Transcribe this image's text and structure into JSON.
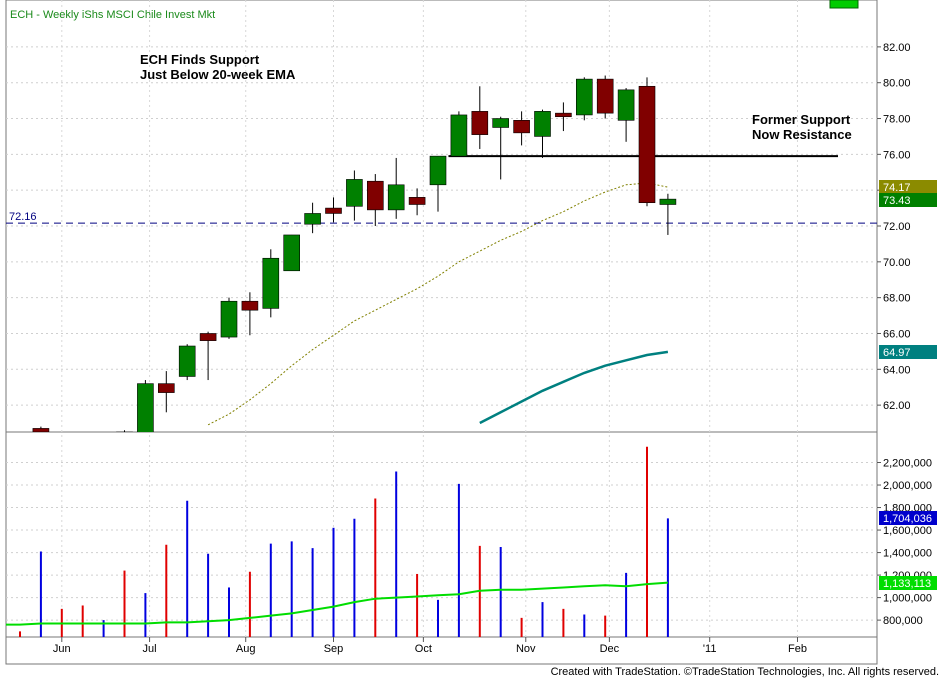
{
  "title": "ECH - Weekly  iShs MSCI Chile Invest Mkt",
  "credit": "Created with TradeStation. ©TradeStation Technologies, Inc. All rights reserved.",
  "chart_data": [
    {
      "type": "candlestick",
      "panel": "price",
      "ylim": [
        60.5,
        83.5
      ],
      "y_ticks": [
        "82.00",
        "80.00",
        "78.00",
        "76.00",
        "74.00",
        "72.00",
        "70.00",
        "68.00",
        "66.00",
        "64.00",
        "62.00"
      ],
      "x_ticks": [
        "Jun",
        "Jul",
        "Aug",
        "Sep",
        "Oct",
        "Nov",
        "Dec",
        "'11",
        "Feb"
      ],
      "candles": [
        {
          "open": 60.4,
          "close": 60.4,
          "high": 60.5,
          "low": 60.3
        },
        {
          "open": 60.7,
          "close": 60.5,
          "high": 60.8,
          "low": 60.3
        },
        {
          "open": 60.4,
          "close": 60.4,
          "high": 60.4,
          "low": 60.3
        },
        {
          "open": 60.4,
          "close": 60.4,
          "high": 60.4,
          "low": 60.3
        },
        {
          "open": 60.4,
          "close": 60.4,
          "high": 60.4,
          "low": 60.3
        },
        {
          "open": 60.5,
          "close": 60.5,
          "high": 60.6,
          "low": 60.3
        },
        {
          "open": 60.4,
          "close": 63.2,
          "high": 63.4,
          "low": 60.3
        },
        {
          "open": 63.2,
          "close": 62.7,
          "high": 63.9,
          "low": 61.6
        },
        {
          "open": 63.6,
          "close": 65.3,
          "high": 65.4,
          "low": 63.4
        },
        {
          "open": 66.0,
          "close": 65.6,
          "high": 66.1,
          "low": 63.4
        },
        {
          "open": 65.8,
          "close": 67.8,
          "high": 68.0,
          "low": 65.7
        },
        {
          "open": 67.8,
          "close": 67.3,
          "high": 68.3,
          "low": 65.9
        },
        {
          "open": 67.4,
          "close": 70.2,
          "high": 70.7,
          "low": 66.9
        },
        {
          "open": 69.5,
          "close": 71.5,
          "high": 71.5,
          "low": 69.5
        },
        {
          "open": 72.1,
          "close": 72.7,
          "high": 73.3,
          "low": 71.6
        },
        {
          "open": 73.0,
          "close": 72.7,
          "high": 73.6,
          "low": 72.2
        },
        {
          "open": 73.1,
          "close": 74.6,
          "high": 75.1,
          "low": 72.3
        },
        {
          "open": 74.5,
          "close": 72.9,
          "high": 74.9,
          "low": 72.0
        },
        {
          "open": 72.9,
          "close": 74.3,
          "high": 75.8,
          "low": 72.4
        },
        {
          "open": 73.6,
          "close": 73.2,
          "high": 74.1,
          "low": 72.6
        },
        {
          "open": 74.3,
          "close": 75.9,
          "high": 75.9,
          "low": 72.8
        },
        {
          "open": 75.9,
          "close": 78.2,
          "high": 78.4,
          "low": 75.9
        },
        {
          "open": 78.4,
          "close": 77.1,
          "high": 79.8,
          "low": 76.3
        },
        {
          "open": 77.5,
          "close": 78.0,
          "high": 78.1,
          "low": 74.6
        },
        {
          "open": 77.9,
          "close": 77.2,
          "high": 78.4,
          "low": 76.5
        },
        {
          "open": 77.0,
          "close": 78.4,
          "high": 78.5,
          "low": 75.8
        },
        {
          "open": 78.3,
          "close": 78.1,
          "high": 78.9,
          "low": 77.3
        },
        {
          "open": 78.2,
          "close": 80.2,
          "high": 80.3,
          "low": 77.9
        },
        {
          "open": 80.2,
          "close": 78.3,
          "high": 80.4,
          "low": 78.0
        },
        {
          "open": 77.9,
          "close": 79.6,
          "high": 79.7,
          "low": 76.7
        },
        {
          "open": 79.8,
          "close": 73.3,
          "high": 80.3,
          "low": 73.1
        },
        {
          "open": 73.2,
          "close": 73.5,
          "high": 73.8,
          "low": 71.5
        }
      ],
      "series": [
        {
          "name": "20-week EMA",
          "color": "#808000",
          "values": [
            null,
            null,
            null,
            null,
            null,
            null,
            null,
            null,
            null,
            60.9,
            61.5,
            62.3,
            63.2,
            64.2,
            65.1,
            65.9,
            66.7,
            67.3,
            67.9,
            68.5,
            69.2,
            70.0,
            70.6,
            71.2,
            71.7,
            72.3,
            72.8,
            73.4,
            73.9,
            74.3,
            74.4,
            74.17
          ],
          "last_label": "74.17"
        },
        {
          "name": "Long MA",
          "color": "#008080",
          "values": [
            null,
            null,
            null,
            null,
            null,
            null,
            null,
            null,
            null,
            null,
            null,
            null,
            null,
            null,
            null,
            null,
            null,
            null,
            null,
            null,
            null,
            null,
            61.0,
            61.6,
            62.2,
            62.8,
            63.3,
            63.8,
            64.2,
            64.5,
            64.8,
            64.97
          ],
          "last_label": "64.97"
        }
      ],
      "last_price": "73.43",
      "reference_line": {
        "value": 72.16,
        "label": "72.16"
      },
      "resistance_line": {
        "value": 75.9
      },
      "annotations": [
        {
          "lines": [
            "ECH Finds Support",
            "Just Below 20-week EMA"
          ]
        },
        {
          "lines": [
            "Former Support",
            "Now Resistance"
          ]
        }
      ]
    },
    {
      "type": "bar",
      "panel": "volume",
      "ylim": [
        650000,
        2400000
      ],
      "y_ticks": [
        "2,200,000",
        "2,000,000",
        "1,800,000",
        "1,600,000",
        "1,400,000",
        "1,200,000",
        "1,000,000",
        "800,000"
      ],
      "values": [
        700000,
        1410000,
        900000,
        930000,
        800000,
        1240000,
        1040000,
        1470000,
        1860000,
        1390000,
        1090000,
        1230000,
        1480000,
        1500000,
        1440000,
        1620000,
        1700000,
        1880000,
        2120000,
        1210000,
        980000,
        2010000,
        1460000,
        1450000,
        820000,
        960000,
        900000,
        850000,
        840000,
        1220000,
        2340000,
        1704036
      ],
      "colors": [
        "red",
        "blue",
        "red",
        "red",
        "blue",
        "red",
        "blue",
        "red",
        "blue",
        "blue",
        "blue",
        "red",
        "blue",
        "blue",
        "blue",
        "blue",
        "blue",
        "red",
        "blue",
        "red",
        "blue",
        "blue",
        "red",
        "blue",
        "red",
        "blue",
        "red",
        "blue",
        "red",
        "blue",
        "red",
        "blue"
      ],
      "last_value_label": "1,704,036",
      "average": {
        "values": [
          760000,
          770000,
          770000,
          770000,
          770000,
          770000,
          770000,
          780000,
          780000,
          790000,
          800000,
          820000,
          840000,
          860000,
          890000,
          920000,
          960000,
          990000,
          1000000,
          1010000,
          1020000,
          1030000,
          1060000,
          1070000,
          1070000,
          1080000,
          1090000,
          1100000,
          1110000,
          1100000,
          1120000,
          1133113
        ],
        "last_label": "1,133,113"
      }
    }
  ]
}
